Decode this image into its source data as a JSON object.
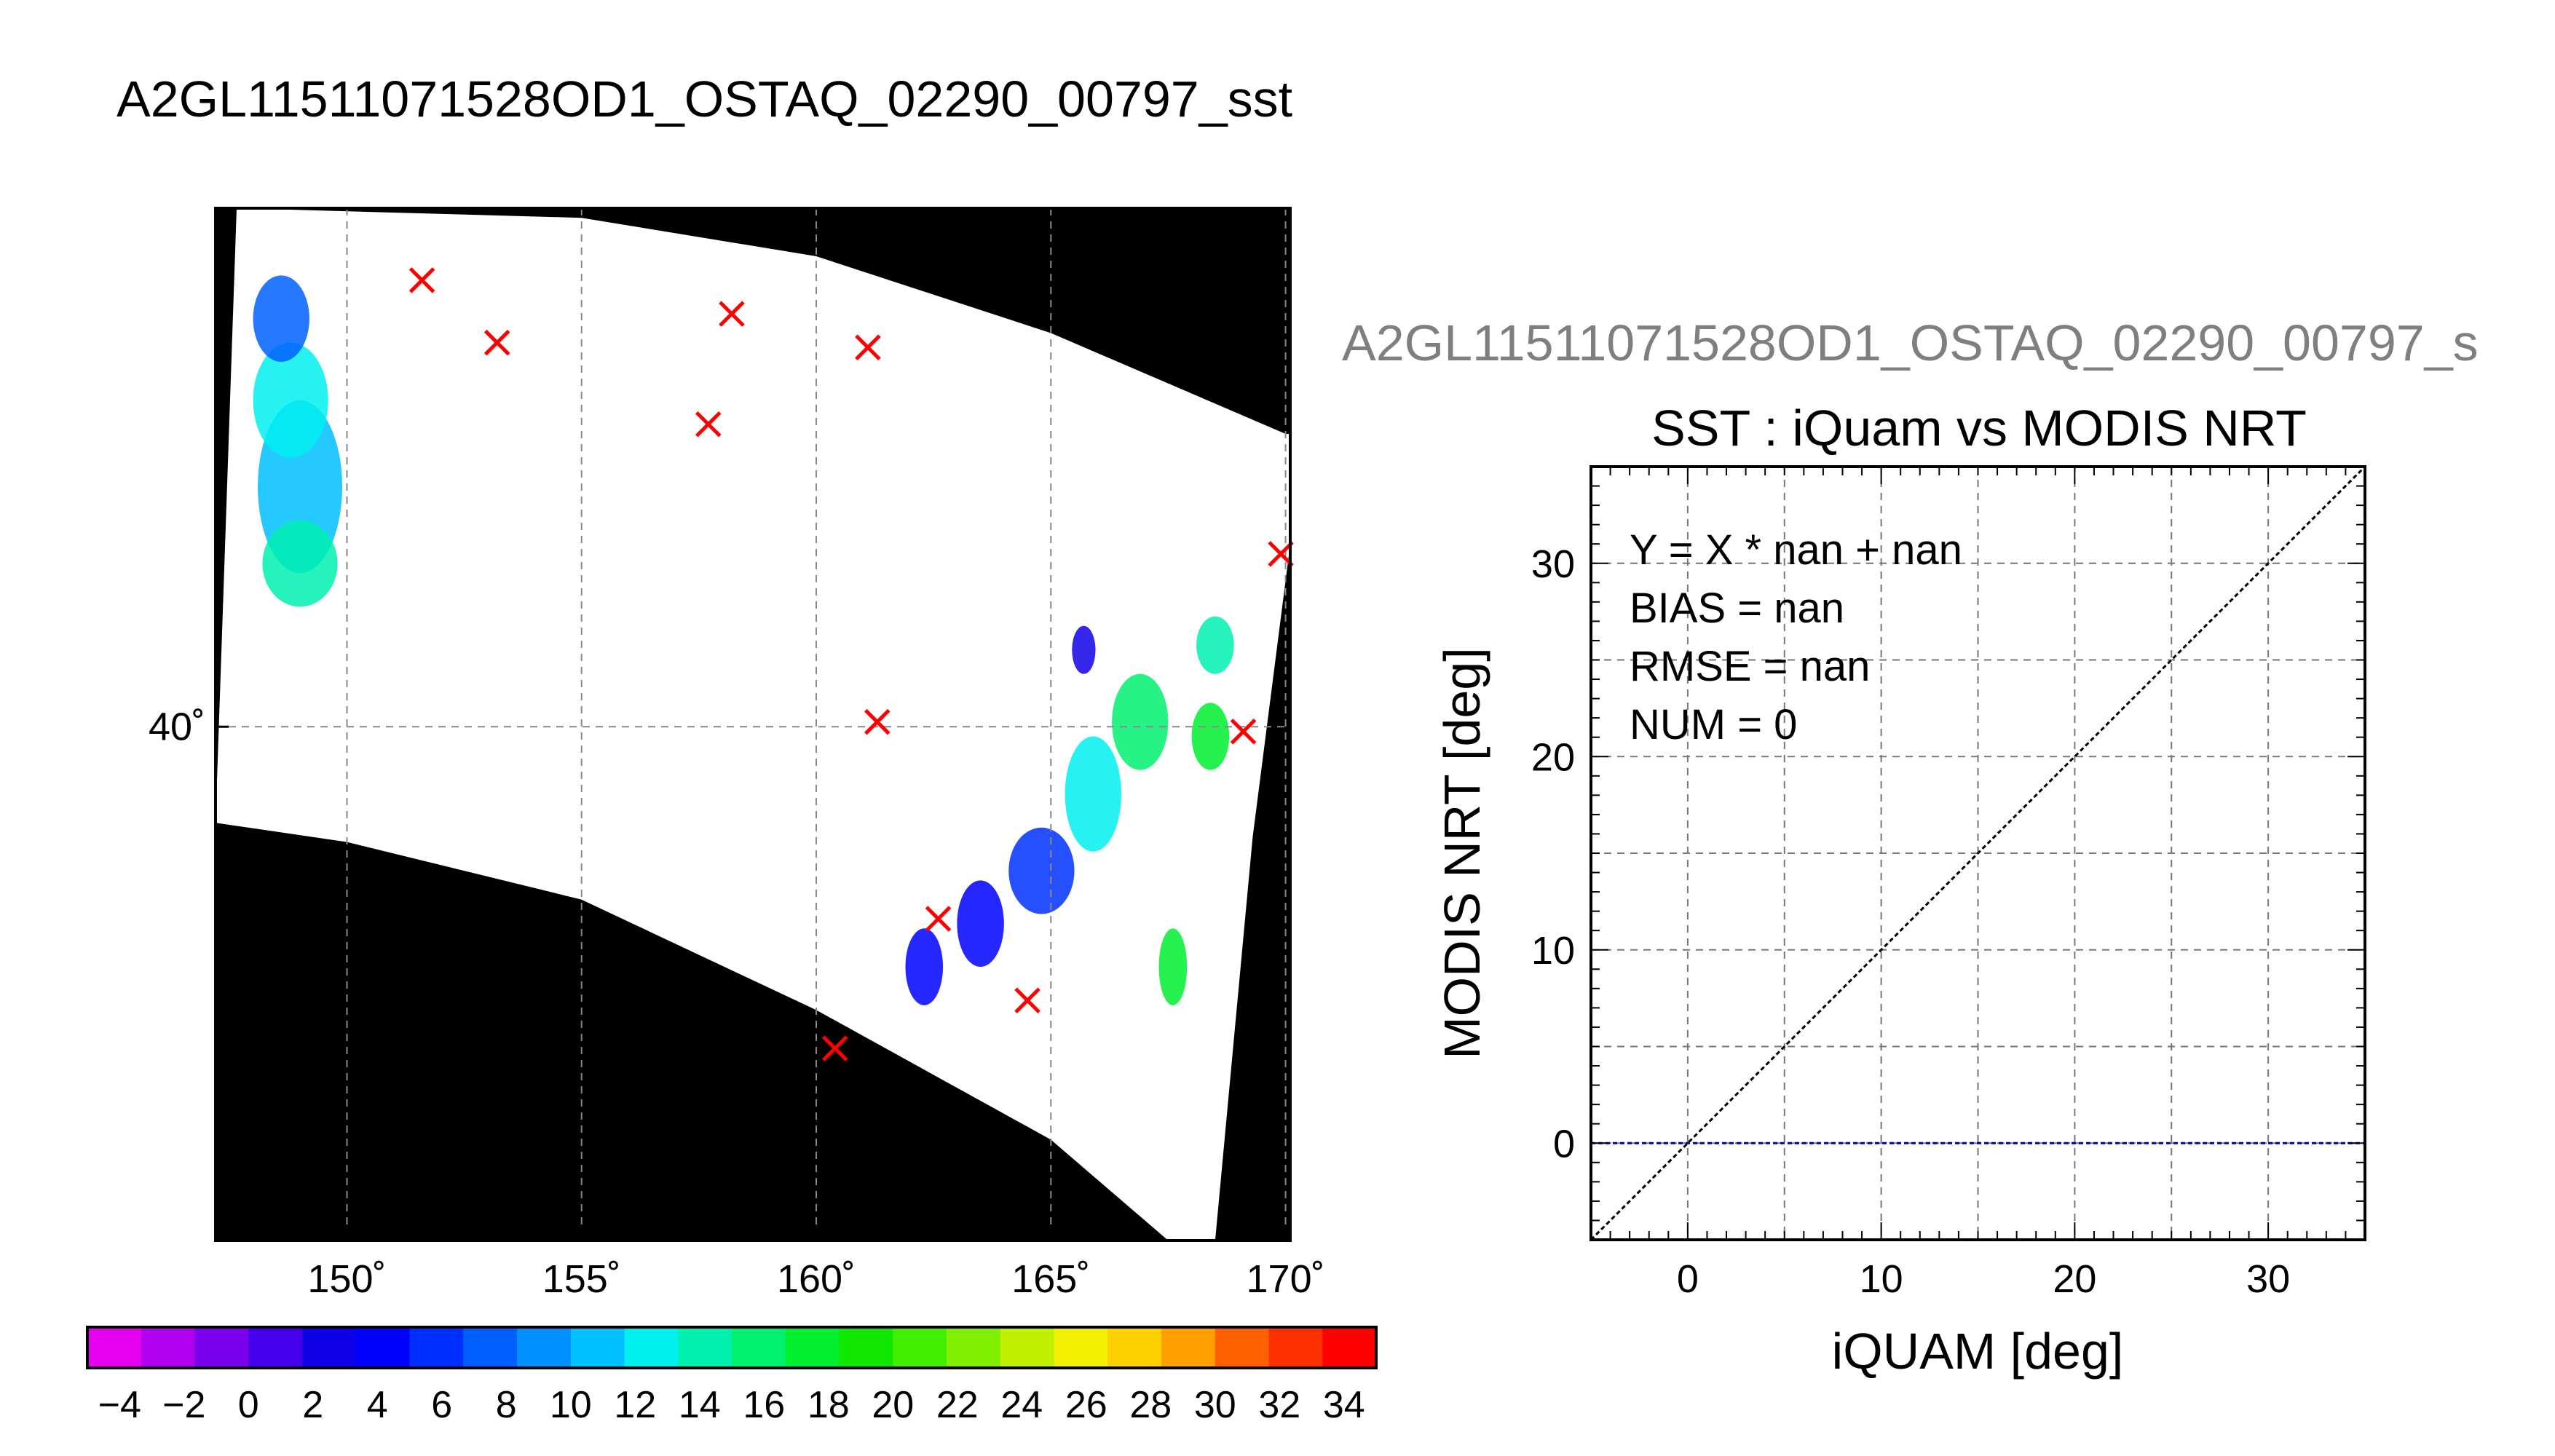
{
  "figure": {
    "main_title": "A2GL11511071528OD1_OSTAQ_02290_00797_sst"
  },
  "chart_data": [
    {
      "type": "heatmap",
      "title": "",
      "x_ticks": [
        "150˚",
        "155˚",
        "160˚",
        "165˚",
        "170˚"
      ],
      "x_tick_values": [
        150,
        155,
        160,
        165,
        170
      ],
      "y_ticks": [
        "40˚"
      ],
      "y_tick_values": [
        40
      ],
      "xlim": [
        147.2,
        170.1
      ],
      "ylim": [
        29.3,
        50.8
      ],
      "grid": true,
      "colors": {
        "no_data": "#000000",
        "cloud": "#ffffff",
        "marker": "#ff0000"
      },
      "swath": {
        "top_edge": [
          [
            147.65,
            50.8
          ],
          [
            155,
            50.6
          ],
          [
            160,
            49.8
          ],
          [
            165,
            48.2
          ],
          [
            170,
            46.1
          ]
        ],
        "bottom_edge": [
          [
            147.2,
            38.0
          ],
          [
            150,
            37.6
          ],
          [
            155,
            36.4
          ],
          [
            160,
            34.1
          ],
          [
            165,
            31.4
          ],
          [
            167.5,
            29.3
          ]
        ],
        "right_edge": [
          [
            170.1,
            46.1
          ],
          [
            170.1,
            43.8
          ],
          [
            169.3,
            37.7
          ],
          [
            168.5,
            29.3
          ]
        ]
      },
      "matchup_markers": [
        {
          "lon": 151.6,
          "lat": 49.3
        },
        {
          "lon": 153.2,
          "lat": 48.0
        },
        {
          "lon": 158.2,
          "lat": 48.6
        },
        {
          "lon": 161.1,
          "lat": 47.9
        },
        {
          "lon": 157.7,
          "lat": 46.3
        },
        {
          "lon": 169.9,
          "lat": 43.6
        },
        {
          "lon": 161.3,
          "lat": 40.1
        },
        {
          "lon": 169.1,
          "lat": 39.9
        },
        {
          "lon": 162.6,
          "lat": 36.0
        },
        {
          "lon": 164.5,
          "lat": 34.3
        },
        {
          "lon": 160.4,
          "lat": 33.3
        }
      ],
      "sst_patches": [
        {
          "value": 10,
          "cx": 149.0,
          "cy": 45.0,
          "rx": 0.9,
          "ry": 1.8
        },
        {
          "value": 12,
          "cx": 148.8,
          "cy": 46.8,
          "rx": 0.8,
          "ry": 1.2
        },
        {
          "value": 7,
          "cx": 148.6,
          "cy": 48.5,
          "rx": 0.6,
          "ry": 0.9
        },
        {
          "value": 14,
          "cx": 149.0,
          "cy": 43.4,
          "rx": 0.8,
          "ry": 0.9
        },
        {
          "value": 16,
          "cx": 166.9,
          "cy": 40.1,
          "rx": 0.6,
          "ry": 1.0
        },
        {
          "value": 12,
          "cx": 165.9,
          "cy": 38.6,
          "rx": 0.6,
          "ry": 1.2
        },
        {
          "value": 6,
          "cx": 164.8,
          "cy": 37.0,
          "rx": 0.7,
          "ry": 0.9
        },
        {
          "value": 4,
          "cx": 163.5,
          "cy": 35.9,
          "rx": 0.5,
          "ry": 0.9
        },
        {
          "value": 18,
          "cx": 168.4,
          "cy": 39.8,
          "rx": 0.4,
          "ry": 0.7
        },
        {
          "value": 18,
          "cx": 167.6,
          "cy": 35.0,
          "rx": 0.3,
          "ry": 0.8
        },
        {
          "value": 14,
          "cx": 168.5,
          "cy": 41.7,
          "rx": 0.4,
          "ry": 0.6
        },
        {
          "value": 4,
          "cx": 162.3,
          "cy": 35.0,
          "rx": 0.4,
          "ry": 0.8
        },
        {
          "value": 2,
          "cx": 165.7,
          "cy": 41.6,
          "rx": 0.25,
          "ry": 0.5
        }
      ]
    },
    {
      "type": "scatter",
      "subtitle": "A2GL11511071528OD1_OSTAQ_02290_00797_s",
      "title": "SST : iQuam vs MODIS NRT",
      "xlabel": "iQUAM [deg]",
      "ylabel": "MODIS NRT [deg]",
      "xlim": [
        -5,
        35
      ],
      "ylim": [
        -5,
        35
      ],
      "x_ticks": [
        0,
        10,
        20,
        30
      ],
      "y_ticks": [
        0,
        10,
        20,
        30
      ],
      "grid": true,
      "reference_lines": [
        {
          "kind": "one_to_one",
          "color": "#000000"
        },
        {
          "kind": "horizontal",
          "y": 0,
          "color": "#0000aa"
        }
      ],
      "annotations": [
        "Y = X * nan + nan",
        "BIAS = nan",
        "RMSE = nan",
        "NUM = 0"
      ],
      "points": []
    },
    {
      "type": "colorbar",
      "min": -5,
      "max": 35,
      "tick_labels": [
        "−4",
        "−2",
        "0",
        "2",
        "4",
        "6",
        "8",
        "10",
        "12",
        "14",
        "16",
        "18",
        "20",
        "22",
        "24",
        "26",
        "28",
        "30",
        "32",
        "34"
      ],
      "tick_values": [
        -4,
        -2,
        0,
        2,
        4,
        6,
        8,
        10,
        12,
        14,
        16,
        18,
        20,
        22,
        24,
        26,
        28,
        30,
        32,
        34
      ],
      "bins": [
        "#e600f0",
        "#b000ef",
        "#7a00ee",
        "#4400ea",
        "#1000e8",
        "#0000ff",
        "#0030ff",
        "#0060ff",
        "#0090ff",
        "#00c0ff",
        "#00f0f0",
        "#00f0b0",
        "#00f070",
        "#00f030",
        "#10e800",
        "#40f000",
        "#80f000",
        "#c0f000",
        "#f0f000",
        "#ffd000",
        "#ffa000",
        "#ff6000",
        "#ff3000",
        "#ff0000"
      ]
    }
  ]
}
